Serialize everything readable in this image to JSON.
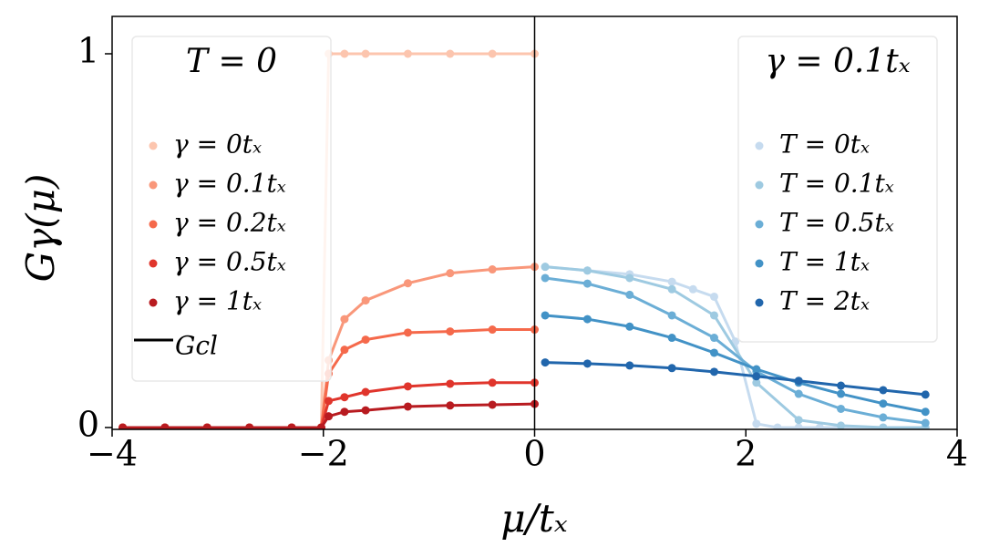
{
  "chart_data": {
    "type": "line",
    "xlabel": "μ/tₓ",
    "ylabel": "Gγ(μ)",
    "xlim": [
      -4,
      4
    ],
    "ylim": [
      -0.005,
      1.1
    ],
    "xticks": [
      {
        "value": -4,
        "label": "−4"
      },
      {
        "value": -2,
        "label": "−2"
      },
      0,
      2,
      4
    ],
    "yticks": [
      0,
      1
    ],
    "vline": 0,
    "markers": true,
    "legends": [
      {
        "title": "T = 0",
        "loc": "upper left",
        "line_label": "Gcl",
        "line_color": "#000000"
      },
      {
        "title": "γ = 0.1tₓ",
        "loc": "upper right"
      }
    ],
    "series": [
      {
        "name": "γ = 0tₓ",
        "legend": 0,
        "color": "#fcc5ae",
        "x": [
          -3.9,
          -3.5,
          -3.1,
          -2.7,
          -2.3,
          -2.02,
          -1.95,
          -1.8,
          -1.6,
          -1.2,
          -0.8,
          -0.4,
          0
        ],
        "values": [
          0,
          0,
          0,
          0,
          0,
          0,
          1,
          1,
          1,
          1,
          1,
          1,
          1
        ]
      },
      {
        "name": "γ = 0.1tₓ",
        "legend": 0,
        "color": "#f9977a",
        "x": [
          -3.9,
          -3.5,
          -3.1,
          -2.7,
          -2.3,
          -2.02,
          -1.95,
          -1.8,
          -1.6,
          -1.2,
          -0.8,
          -0.4,
          0
        ],
        "values": [
          0,
          0,
          0,
          0,
          0,
          0,
          0.18,
          0.29,
          0.34,
          0.386,
          0.413,
          0.423,
          0.43
        ]
      },
      {
        "name": "γ = 0.2tₓ",
        "legend": 0,
        "color": "#f5694b",
        "x": [
          -3.9,
          -3.5,
          -3.1,
          -2.7,
          -2.3,
          -2.02,
          -1.95,
          -1.8,
          -1.6,
          -1.2,
          -0.8,
          -0.4,
          0
        ],
        "values": [
          0,
          0,
          0,
          0,
          0,
          0,
          0.144,
          0.208,
          0.235,
          0.254,
          0.257,
          0.262,
          0.262
        ]
      },
      {
        "name": "γ = 0.5tₓ",
        "legend": 0,
        "color": "#e0352c",
        "x": [
          -3.9,
          -3.5,
          -3.1,
          -2.7,
          -2.3,
          -2.02,
          -1.95,
          -1.8,
          -1.6,
          -1.2,
          -0.8,
          -0.4,
          0
        ],
        "values": [
          0,
          0,
          0,
          0,
          0,
          0,
          0.071,
          0.081,
          0.095,
          0.11,
          0.117,
          0.12,
          0.12
        ]
      },
      {
        "name": "γ = 1tₓ",
        "legend": 0,
        "color": "#b81b20",
        "x": [
          -3.9,
          -3.5,
          -3.1,
          -2.7,
          -2.3,
          -2.02,
          -1.95,
          -1.8,
          -1.6,
          -1.2,
          -0.8,
          -0.4,
          0
        ],
        "values": [
          0,
          0,
          0,
          0,
          0,
          0,
          0.03,
          0.042,
          0.046,
          0.056,
          0.059,
          0.061,
          0.063
        ]
      },
      {
        "name": "T = 0tₓ",
        "legend": 1,
        "color": "#c6dbef",
        "x": [
          0.1,
          0.5,
          0.9,
          1.3,
          1.5,
          1.7,
          1.9,
          2.1,
          2.3,
          2.5,
          2.7,
          2.9,
          3.3,
          3.7
        ],
        "values": [
          0.43,
          0.42,
          0.41,
          0.39,
          0.37,
          0.35,
          0.23,
          0.01,
          0,
          0,
          0,
          0,
          0,
          0
        ]
      },
      {
        "name": "T = 0.1tₓ",
        "legend": 1,
        "color": "#9ecae1",
        "x": [
          0.1,
          0.5,
          0.9,
          1.3,
          1.7,
          2.1,
          2.5,
          2.9,
          3.3,
          3.7
        ],
        "values": [
          0.43,
          0.42,
          0.4,
          0.37,
          0.3,
          0.12,
          0.02,
          0.005,
          0,
          0
        ]
      },
      {
        "name": "T = 0.5tₓ",
        "legend": 1,
        "color": "#6baed6",
        "x": [
          0.1,
          0.5,
          0.9,
          1.3,
          1.7,
          2.1,
          2.5,
          2.9,
          3.3,
          3.7
        ],
        "values": [
          0.4,
          0.385,
          0.355,
          0.3,
          0.24,
          0.15,
          0.09,
          0.05,
          0.027,
          0.012
        ]
      },
      {
        "name": "T = 1tₓ",
        "legend": 1,
        "color": "#4292c6",
        "x": [
          0.1,
          0.5,
          0.9,
          1.3,
          1.7,
          2.1,
          2.5,
          2.9,
          3.3,
          3.7
        ],
        "values": [
          0.3,
          0.29,
          0.27,
          0.24,
          0.2,
          0.156,
          0.12,
          0.09,
          0.064,
          0.042
        ]
      },
      {
        "name": "T = 2tₓ",
        "legend": 1,
        "color": "#2166ac",
        "x": [
          0.1,
          0.5,
          0.9,
          1.3,
          1.7,
          2.1,
          2.5,
          2.9,
          3.3,
          3.7
        ],
        "values": [
          0.174,
          0.171,
          0.166,
          0.159,
          0.149,
          0.137,
          0.125,
          0.112,
          0.1,
          0.088
        ]
      }
    ]
  }
}
